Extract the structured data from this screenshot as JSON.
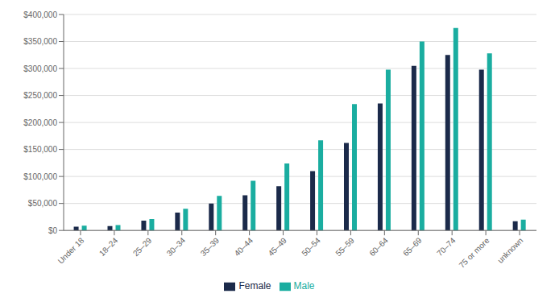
{
  "chart_data": {
    "type": "bar",
    "categories": [
      "Under 18",
      "18–24",
      "25–29",
      "30–34",
      "35–39",
      "40–44",
      "45–49",
      "50–54",
      "55–59",
      "60–64",
      "65–69",
      "70–74",
      "75 or more",
      "unknown"
    ],
    "series": [
      {
        "name": "Female",
        "color": "#1b2a4a",
        "values": [
          7000,
          8000,
          18000,
          33000,
          50000,
          65000,
          82000,
          110000,
          162000,
          235000,
          305000,
          325000,
          298000,
          17000
        ]
      },
      {
        "name": "Male",
        "color": "#1aada0",
        "values": [
          9000,
          10000,
          21000,
          40000,
          64000,
          92000,
          124000,
          167000,
          234000,
          298000,
          350000,
          375000,
          328000,
          20000
        ]
      }
    ],
    "ylim": [
      0,
      400000
    ],
    "yticks": [
      {
        "value": 0,
        "label": "$0"
      },
      {
        "value": 50000,
        "label": "$50,000"
      },
      {
        "value": 100000,
        "label": "$100,000"
      },
      {
        "value": 150000,
        "label": "$150,000"
      },
      {
        "value": 200000,
        "label": "$200,000"
      },
      {
        "value": 250000,
        "label": "$250,000"
      },
      {
        "value": 300000,
        "label": "$300,000"
      },
      {
        "value": 350000,
        "label": "$350,000"
      },
      {
        "value": 400000,
        "label": "$400,000"
      }
    ],
    "grid": true,
    "legend": "bottom"
  }
}
